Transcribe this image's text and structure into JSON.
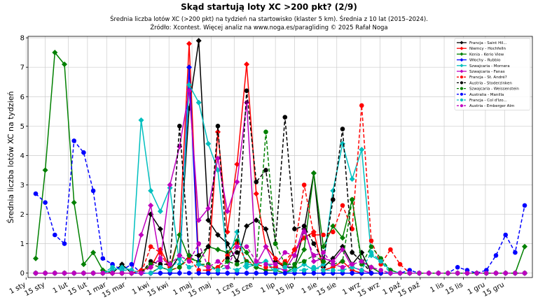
{
  "chart_data": {
    "type": "line",
    "title": "Skąd startują loty XC >200 pkt? (2/9)",
    "subtitle": "Średnia liczba lotów XC (>200 pkt) na tydzień na startowisko (klaster 5 km). Średnia z 10 lat (2015–2024).",
    "source": "Źródło: Xcontest. Więcej analiz na www.noga.es/paragliding © 2025 Rafał Noga",
    "xlabel": "",
    "ylabel": "Średnia liczba lotów XC na tydzień",
    "ylim": [
      -0.15,
      8.05
    ],
    "yticks": [
      0,
      1,
      2,
      3,
      4,
      5,
      6,
      7,
      8
    ],
    "xlim": [
      0.2,
      52.8
    ],
    "xticks": [
      {
        "label": "1 sty",
        "x": 0
      },
      {
        "label": "15 sty",
        "x": 2
      },
      {
        "label": "1 lut",
        "x": 4.4
      },
      {
        "label": "15 lut",
        "x": 6.4
      },
      {
        "label": "1 mar",
        "x": 8.4
      },
      {
        "label": "15 mar",
        "x": 10.4
      },
      {
        "label": "1 kwi",
        "x": 12.9
      },
      {
        "label": "15 kwi",
        "x": 14.9
      },
      {
        "label": "1 maj",
        "x": 17.3
      },
      {
        "label": "15 maj",
        "x": 19.3
      },
      {
        "label": "1 cze",
        "x": 21.7
      },
      {
        "label": "15 cze",
        "x": 23.7
      },
      {
        "label": "1 lip",
        "x": 26.0
      },
      {
        "label": "15 lip",
        "x": 28.0
      },
      {
        "label": "1 sie",
        "x": 30.4
      },
      {
        "label": "15 sie",
        "x": 32.4
      },
      {
        "label": "1 wrz",
        "x": 34.9
      },
      {
        "label": "15 wrz",
        "x": 36.9
      },
      {
        "label": "1 paź",
        "x": 39.1
      },
      {
        "label": "15 paź",
        "x": 41.1
      },
      {
        "label": "1 lis",
        "x": 43.6
      },
      {
        "label": "15 lis",
        "x": 45.6
      },
      {
        "label": "1 gru",
        "x": 47.9
      },
      {
        "label": "15 gru",
        "x": 49.9
      }
    ],
    "grid": true,
    "legend_position": "top-right",
    "x_start_week": 1,
    "series": [
      {
        "name": "Francja - Saint Hil...",
        "color": "#000000",
        "dash": "solid",
        "marker": "diamond",
        "values": [
          0,
          0,
          0,
          0,
          0,
          0,
          0,
          0,
          0,
          0.3,
          0,
          0,
          2.0,
          1.5,
          0.1,
          0.6,
          5.6,
          7.9,
          1.8,
          1.3,
          1.0,
          0.4,
          1.6,
          1.8,
          1.5,
          0.4,
          0.2,
          0.2,
          1.5,
          3.4,
          0.2,
          0.5,
          0.9,
          0.3,
          0.7,
          0,
          0,
          0,
          0,
          0,
          0,
          0,
          0,
          0,
          0,
          0,
          0,
          0,
          0,
          0,
          0,
          0
        ]
      },
      {
        "name": "Niemcy - Hochfelln",
        "color": "#ff0000",
        "dash": "solid",
        "marker": "diamond",
        "values": [
          0,
          0,
          0,
          0,
          0,
          0,
          0,
          0,
          0,
          0,
          0,
          0.1,
          0.2,
          0.8,
          0.2,
          1.3,
          7.8,
          0.3,
          0.2,
          4.8,
          1.4,
          3.7,
          7.1,
          2.7,
          0.9,
          0.5,
          0.2,
          0.8,
          1.2,
          1.4,
          0.1,
          0.2,
          0.4,
          0.1,
          0,
          0,
          0,
          0,
          0,
          0,
          0,
          0,
          0,
          0,
          0,
          0,
          0,
          0,
          0,
          0,
          0,
          0
        ]
      },
      {
        "name": "Kenia - Kerio View",
        "color": "#008000",
        "dash": "solid",
        "marker": "diamond",
        "values": [
          0.5,
          3.5,
          7.5,
          7.1,
          2.4,
          0.3,
          0.7,
          0.1,
          0,
          0,
          0,
          0,
          0,
          0.2,
          0.1,
          1.3,
          0.5,
          0.4,
          0.9,
          0.8,
          0.7,
          1.1,
          0.7,
          0.2,
          0.1,
          0.1,
          0,
          0.2,
          0.8,
          3.4,
          0.9,
          1.6,
          1.2,
          2.5,
          0.4,
          0.2,
          0,
          0,
          0,
          0,
          0,
          0,
          0,
          0,
          0,
          0,
          0,
          0,
          0,
          0,
          0,
          0.9
        ]
      },
      {
        "name": "Włochy - Rubbio",
        "color": "#0000ff",
        "dash": "solid",
        "marker": "diamond",
        "values": [
          0,
          0,
          0,
          0,
          0,
          0,
          0,
          0,
          0,
          0,
          0,
          0,
          0,
          0,
          0,
          0,
          7.0,
          0,
          0,
          0,
          0,
          0,
          0,
          0,
          0,
          0,
          0,
          0,
          0,
          0,
          0,
          0,
          0,
          0,
          0,
          0,
          0,
          0,
          0,
          0,
          0,
          0,
          0,
          0,
          0,
          0,
          0,
          0,
          0,
          0,
          0,
          0
        ]
      },
      {
        "name": "Szwajcaria - Mornera",
        "color": "#00bfbf",
        "dash": "solid",
        "marker": "diamond",
        "values": [
          0,
          0,
          0,
          0,
          0,
          0,
          0,
          0,
          0.1,
          0.2,
          0.1,
          5.2,
          2.8,
          2.1,
          2.9,
          0.3,
          6.4,
          5.8,
          4.4,
          3.5,
          0.4,
          1.4,
          0.2,
          0.3,
          0.4,
          0,
          0,
          0.1,
          0.3,
          0.1,
          0.3,
          2.8,
          4.4,
          3.2,
          4.2,
          0.6,
          0.4,
          0.1,
          0,
          0,
          0,
          0,
          0,
          0,
          0,
          0,
          0,
          0,
          0,
          0,
          0,
          0
        ]
      },
      {
        "name": "Szwajcaria - Fanas",
        "color": "#bf00bf",
        "dash": "solid",
        "marker": "diamond",
        "values": [
          0,
          0,
          0,
          0,
          0,
          0,
          0,
          0,
          0,
          0,
          0,
          1.3,
          2.3,
          0.4,
          3.0,
          4.3,
          6.2,
          1.8,
          2.2,
          3.9,
          2.1,
          3.1,
          5.8,
          0.3,
          0.9,
          0.2,
          0.1,
          0.6,
          1.6,
          0.4,
          0.5,
          0.4,
          0.8,
          0.2,
          0.1,
          0,
          0,
          0,
          0,
          0,
          0,
          0,
          0,
          0,
          0,
          0,
          0,
          0,
          0,
          0,
          0,
          0
        ]
      },
      {
        "name": "Francja - St. André?",
        "color": "#ff0000",
        "dash": "dashed",
        "marker": "circle",
        "values": [
          0,
          0,
          0,
          0,
          0,
          0,
          0,
          0,
          0,
          0,
          0,
          0,
          0.9,
          0.7,
          0.1,
          0.2,
          0.5,
          0.1,
          0.1,
          0.2,
          0.6,
          1.0,
          0.4,
          0.3,
          0.2,
          0.2,
          0.4,
          0.8,
          3.0,
          1.3,
          1.3,
          1.4,
          2.3,
          1.5,
          5.7,
          1.1,
          0.3,
          0.8,
          0.3,
          0,
          0,
          0,
          0,
          0,
          0,
          0,
          0,
          0,
          0,
          0,
          0,
          0
        ]
      },
      {
        "name": "Austria - Stoderzinken",
        "color": "#000000",
        "dash": "dashed",
        "marker": "circle",
        "values": [
          0,
          0,
          0,
          0,
          0,
          0,
          0,
          0,
          0,
          0,
          0,
          0,
          0.4,
          0.3,
          0.3,
          5.0,
          0.6,
          0.6,
          0.9,
          5.0,
          0.5,
          0.7,
          6.2,
          3.1,
          3.5,
          1.0,
          5.3,
          1.5,
          1.6,
          1.0,
          0.4,
          2.5,
          4.9,
          0.7,
          0.4,
          0,
          0,
          0,
          0,
          0,
          0,
          0,
          0,
          0,
          0,
          0,
          0,
          0,
          0,
          0,
          0,
          0
        ]
      },
      {
        "name": "Szwajcaria - Weissenstein",
        "color": "#008000",
        "dash": "dashed",
        "marker": "circle",
        "values": [
          0,
          0,
          0,
          0,
          0,
          0,
          0,
          0,
          0,
          0,
          0,
          0,
          0.3,
          0.2,
          0.1,
          0.2,
          0.6,
          0.3,
          0.3,
          0.1,
          0.4,
          0.3,
          0.4,
          0.2,
          4.8,
          1.0,
          0.3,
          0.3,
          0.4,
          0.6,
          0.4,
          0.3,
          0.4,
          2.5,
          0.3,
          0.9,
          0.5,
          0.1,
          0,
          0,
          0,
          0,
          0,
          0,
          0,
          0,
          0,
          0,
          0,
          0,
          0,
          0
        ]
      },
      {
        "name": "Australia - Manilla",
        "color": "#0000ff",
        "dash": "dashed",
        "marker": "circle",
        "values": [
          2.7,
          2.4,
          1.3,
          1.0,
          4.5,
          4.1,
          2.8,
          0.5,
          0.3,
          0.1,
          0.3,
          0,
          0,
          0,
          0,
          0,
          0,
          0,
          0,
          0,
          0,
          0,
          0,
          0,
          0,
          0,
          0,
          0,
          0,
          0,
          0,
          0,
          0,
          0,
          0,
          0,
          0,
          0,
          0,
          0.1,
          0,
          0,
          0,
          0,
          0.2,
          0.1,
          0,
          0.1,
          0.6,
          1.3,
          0.7,
          2.3
        ]
      },
      {
        "name": "Francja - Col d'Izo...",
        "color": "#00bfbf",
        "dash": "dashed",
        "marker": "circle",
        "values": [
          0,
          0,
          0,
          0,
          0,
          0,
          0,
          0,
          0.2,
          0.1,
          0.1,
          0,
          0,
          0.2,
          0.1,
          0.5,
          0.2,
          0.3,
          0.2,
          0.1,
          0.2,
          0.1,
          0.3,
          0.3,
          0.4,
          0.1,
          0.2,
          0.1,
          0.1,
          0.2,
          0.1,
          0.1,
          0.1,
          0.2,
          0.1,
          0.7,
          0.4,
          0,
          0,
          0,
          0,
          0,
          0,
          0,
          0,
          0,
          0,
          0,
          0,
          0,
          0,
          0
        ]
      },
      {
        "name": "Austria - Emberger Alm",
        "color": "#bf00bf",
        "dash": "dashed",
        "marker": "circle",
        "values": [
          0,
          0,
          0,
          0,
          0,
          0,
          0,
          0,
          0,
          0,
          0,
          0,
          0.2,
          0.5,
          0.3,
          0.6,
          0.4,
          1.0,
          0.2,
          0.4,
          0.2,
          0.9,
          0.9,
          0.4,
          0.3,
          0.3,
          0.7,
          0.6,
          1.4,
          0.6,
          0.7,
          0.3,
          0.2,
          0.3,
          0.4,
          0.2,
          0.1,
          0,
          0,
          0,
          0,
          0,
          0,
          0,
          0,
          0,
          0,
          0,
          0,
          0,
          0,
          0
        ]
      }
    ]
  }
}
